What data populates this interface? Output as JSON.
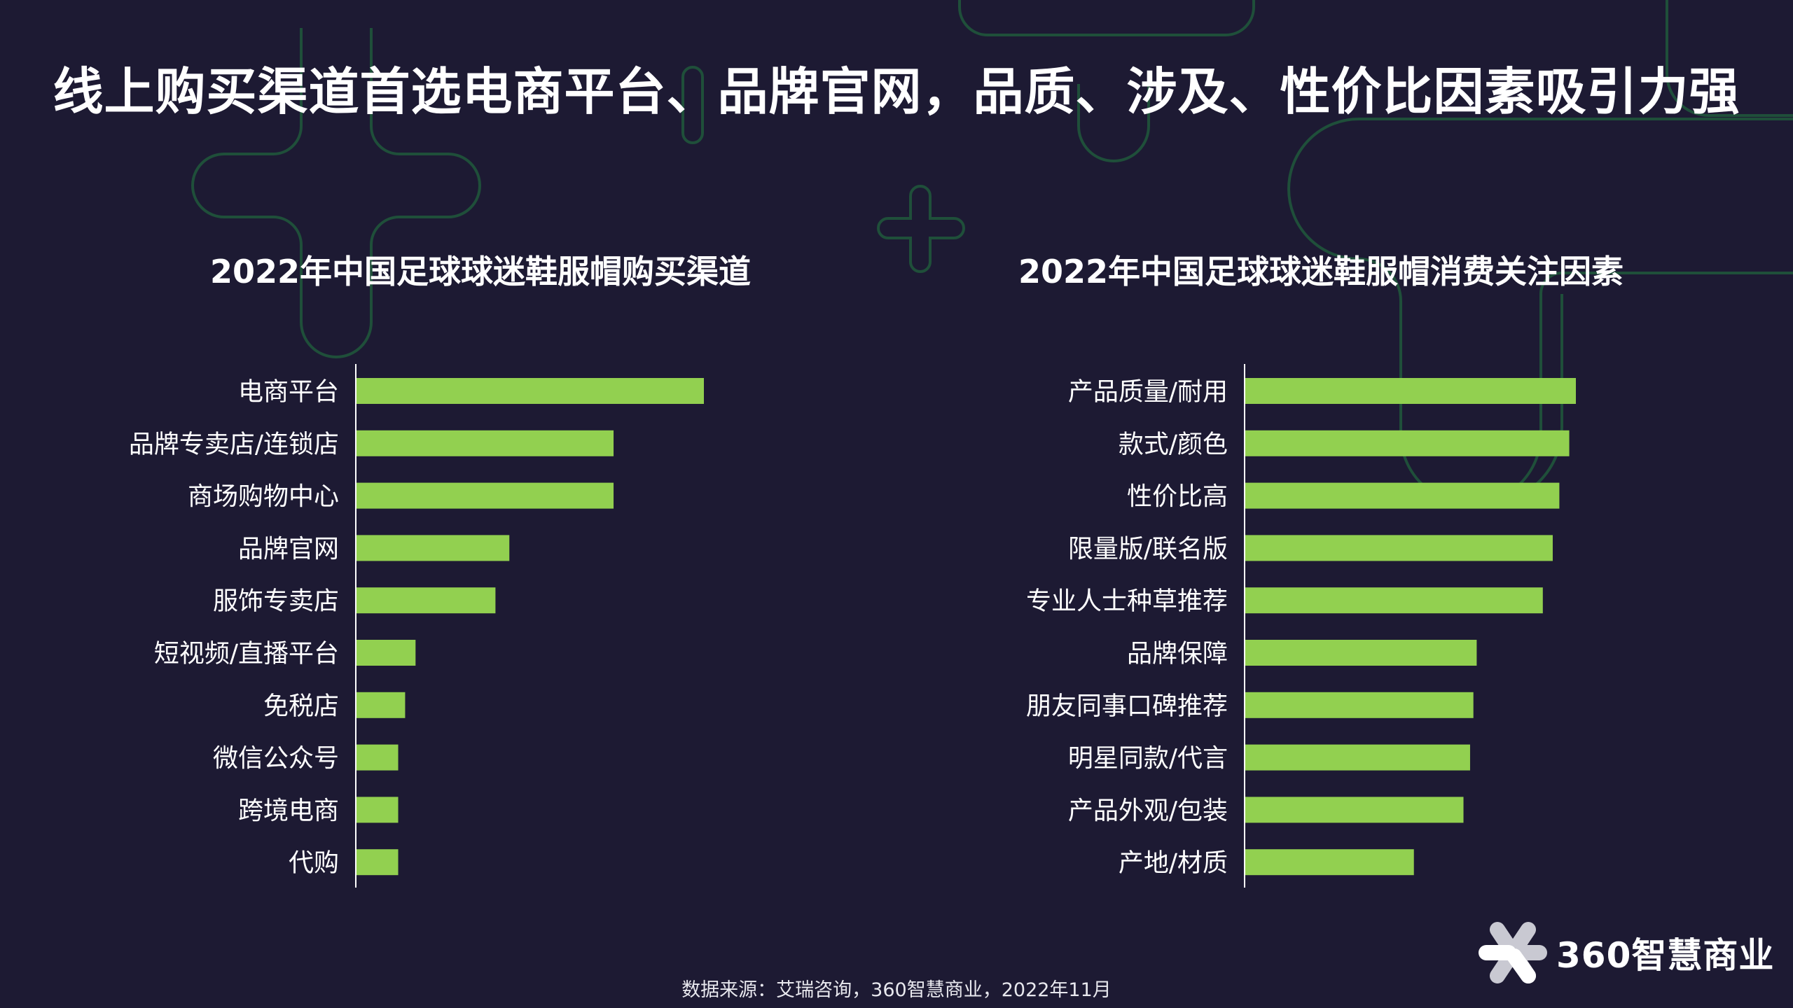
{
  "title": "线上购买渠道首选电商平台、品牌官网，品质、涉及、性价比因素吸引力强",
  "colors": {
    "background": "#1d1a33",
    "bar": "#92d050",
    "decoration": "#1f4f3a",
    "text": "#ffffff"
  },
  "chart_data": [
    {
      "type": "bar",
      "orientation": "horizontal",
      "title": "2022年中国足球球迷鞋服帽购买渠道",
      "categories": [
        "电商平台",
        "品牌专卖店/连锁店",
        "商场购物中心",
        "品牌官网",
        "服饰专卖店",
        "短视频/直播平台",
        "免税店",
        "微信公众号",
        "跨境电商",
        "代购"
      ],
      "values": [
        100,
        74,
        74,
        44,
        40,
        17,
        14,
        12,
        12,
        12
      ],
      "xlim": [
        0,
        100
      ],
      "grid": false
    },
    {
      "type": "bar",
      "orientation": "horizontal",
      "title": "2022年中国足球球迷鞋服帽消费关注因素",
      "categories": [
        "产品质量/耐用",
        "款式/颜色",
        "性价比高",
        "限量版/联名版",
        "专业人士种草推荐",
        "品牌保障",
        "朋友同事口碑推荐",
        "明星同款/代言",
        "产品外观/包装",
        "产地/材质"
      ],
      "values": [
        100,
        98,
        95,
        93,
        90,
        70,
        69,
        68,
        66,
        51
      ],
      "xlim": [
        0,
        100
      ],
      "grid": false
    }
  ],
  "footer": "数据来源：艾瑞咨询，360智慧商业，2022年11月",
  "logo": {
    "text": "360智慧商业",
    "icon": "360-flower-logo-icon"
  }
}
